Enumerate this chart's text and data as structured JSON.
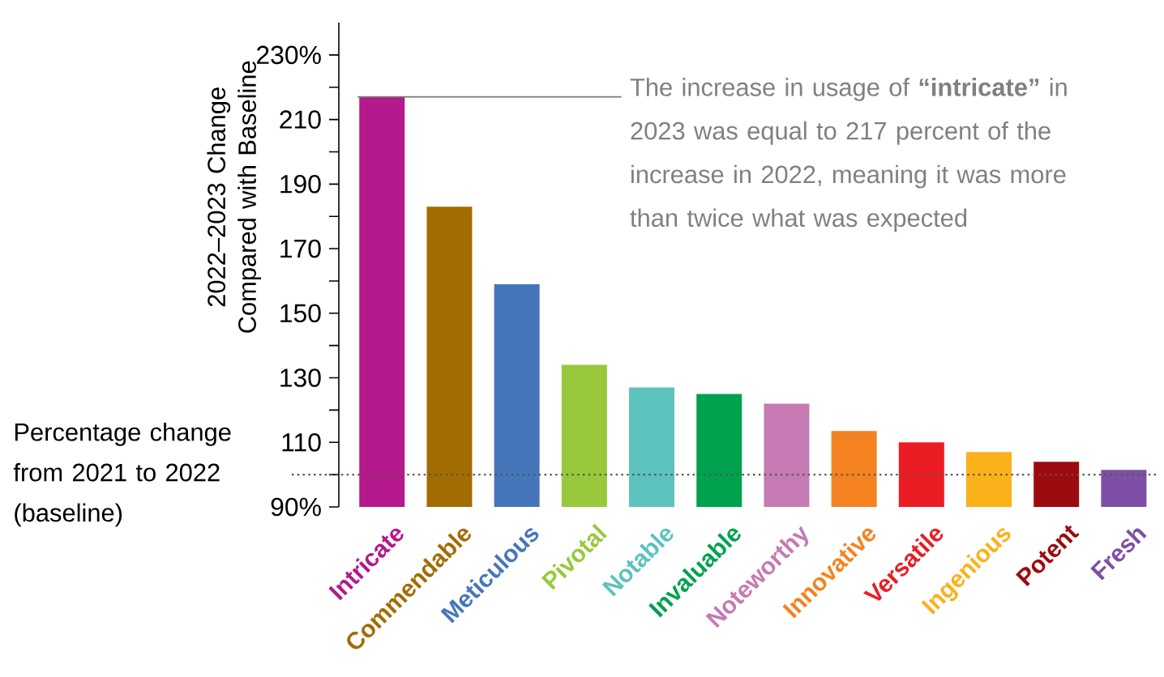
{
  "chart_data": {
    "type": "bar",
    "ylabel": "2022–2023 Change Compared with Baseline",
    "categories": [
      "Intricate",
      "Commendable",
      "Meticulous",
      "Pivotal",
      "Notable",
      "Invaluable",
      "Noteworthy",
      "Innovative",
      "Versatile",
      "Ingenious",
      "Potent",
      "Fresh"
    ],
    "values": [
      217,
      183,
      159,
      134,
      127,
      125,
      122,
      113.5,
      110,
      107,
      104,
      101.5
    ],
    "colors": [
      "#b5198b",
      "#a36c03",
      "#4676ba",
      "#99c83d",
      "#5cc2bd",
      "#00a24f",
      "#c57ab3",
      "#f58220",
      "#ec1c24",
      "#fbb11a",
      "#9d0b0e",
      "#7d4fa6"
    ],
    "ylim": [
      90,
      240
    ],
    "yticks": [
      {
        "value": 90,
        "label": "90%"
      },
      110,
      130,
      150,
      170,
      190,
      210,
      {
        "value": 230,
        "label": "230%"
      }
    ],
    "ref_lines": [
      {
        "axis": "y",
        "value": 100,
        "label": "Percentage change from 2021 to 2022 (baseline)",
        "color": "#555555",
        "line_style": "dotted"
      }
    ],
    "annotations": [
      {
        "text": "The increase in usage of **“intricate”** in 2023 was equal to 217 percent of the increase in 2022, meaning it was more than twice what was expected",
        "x": "Intricate",
        "y": 217
      }
    ],
    "grid": false
  }
}
